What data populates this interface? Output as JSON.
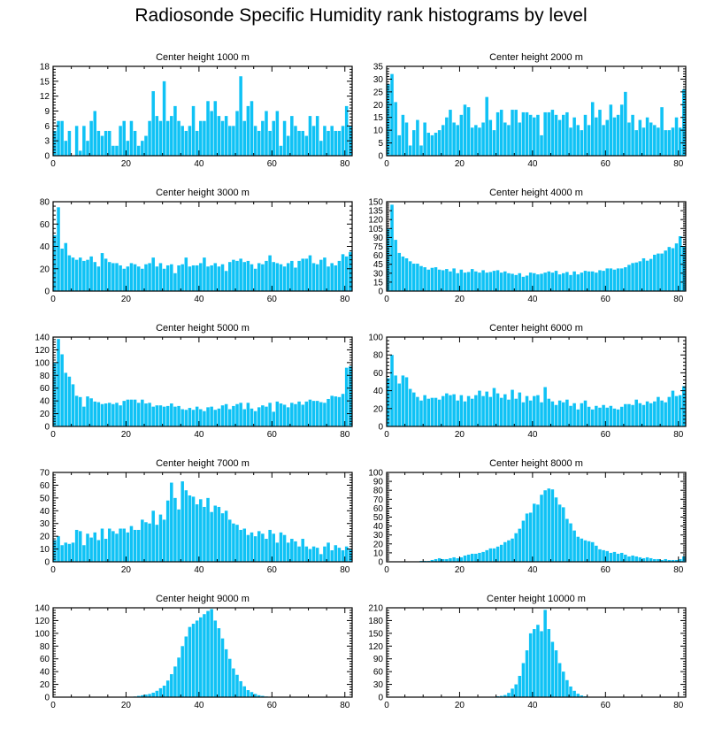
{
  "figure": {
    "title": "Radiosonde Specific Humidity rank histograms by level",
    "bar_color": "#0fc2f5",
    "axis_color": "#000000"
  },
  "chart_data": [
    {
      "type": "bar",
      "title": "Center height 1000 m",
      "xlim": [
        0,
        82
      ],
      "xticks": [
        0,
        20,
        40,
        60,
        80
      ],
      "ylim": [
        0,
        18
      ],
      "yticks": [
        0,
        3,
        6,
        9,
        12,
        15,
        18
      ],
      "values": [
        5,
        7,
        7,
        3,
        5,
        0,
        6,
        1,
        6,
        3,
        7,
        9,
        5,
        4,
        5,
        5,
        2,
        2,
        6,
        7,
        3,
        7,
        5,
        2,
        3,
        4,
        7,
        13,
        8,
        7,
        15,
        7,
        8,
        10,
        7,
        6,
        5,
        6,
        10,
        5,
        7,
        7,
        11,
        9,
        11,
        8,
        7,
        8,
        6,
        6,
        9,
        16,
        7,
        10,
        11,
        6,
        5,
        7,
        9,
        5,
        7,
        9,
        2,
        7,
        4,
        8,
        6,
        5,
        5,
        4,
        8,
        6,
        8,
        3,
        6,
        5,
        6,
        5,
        5,
        6,
        10,
        6
      ]
    },
    {
      "type": "bar",
      "title": "Center height 2000 m",
      "xlim": [
        0,
        82
      ],
      "xticks": [
        0,
        20,
        40,
        60,
        80
      ],
      "ylim": [
        0,
        35
      ],
      "yticks": [
        0,
        5,
        10,
        15,
        20,
        25,
        30,
        35
      ],
      "values": [
        28,
        32,
        21,
        8,
        16,
        13,
        4,
        10,
        14,
        4,
        13,
        9,
        8,
        9,
        10,
        12,
        15,
        18,
        13,
        12,
        16,
        20,
        19,
        11,
        12,
        11,
        13,
        23,
        14,
        10,
        17,
        18,
        13,
        12,
        18,
        18,
        13,
        17,
        17,
        16,
        15,
        16,
        8,
        17,
        17,
        18,
        16,
        14,
        16,
        17,
        11,
        15,
        12,
        10,
        16,
        12,
        21,
        15,
        18,
        12,
        14,
        20,
        15,
        16,
        20,
        25,
        13,
        16,
        10,
        14,
        11,
        15,
        13,
        12,
        11,
        19,
        10,
        10,
        11,
        15,
        11,
        26
      ]
    },
    {
      "type": "bar",
      "title": "Center height 3000 m",
      "xlim": [
        0,
        82
      ],
      "xticks": [
        0,
        20,
        40,
        60,
        80
      ],
      "ylim": [
        0,
        80
      ],
      "yticks": [
        0,
        20,
        40,
        60,
        80
      ],
      "values": [
        50,
        75,
        38,
        43,
        32,
        30,
        28,
        30,
        27,
        28,
        31,
        26,
        22,
        34,
        29,
        26,
        25,
        25,
        23,
        20,
        22,
        25,
        24,
        22,
        20,
        24,
        25,
        30,
        22,
        25,
        20,
        23,
        24,
        16,
        23,
        24,
        30,
        22,
        23,
        23,
        25,
        30,
        22,
        23,
        25,
        22,
        24,
        18,
        26,
        28,
        27,
        29,
        26,
        27,
        24,
        20,
        25,
        24,
        27,
        32,
        26,
        25,
        24,
        22,
        25,
        27,
        21,
        27,
        29,
        29,
        32,
        25,
        24,
        28,
        30,
        22,
        25,
        23,
        27,
        33,
        31,
        35
      ]
    },
    {
      "type": "bar",
      "title": "Center height 4000 m",
      "xlim": [
        0,
        82
      ],
      "xticks": [
        0,
        20,
        40,
        60,
        80
      ],
      "ylim": [
        0,
        150
      ],
      "yticks": [
        0,
        15,
        30,
        45,
        60,
        75,
        90,
        105,
        120,
        135,
        150
      ],
      "values": [
        105,
        145,
        86,
        64,
        58,
        55,
        50,
        46,
        46,
        42,
        40,
        36,
        39,
        40,
        36,
        35,
        37,
        33,
        38,
        30,
        36,
        31,
        32,
        37,
        33,
        31,
        35,
        31,
        32,
        34,
        35,
        31,
        33,
        30,
        29,
        27,
        30,
        24,
        26,
        31,
        30,
        28,
        29,
        31,
        33,
        31,
        34,
        28,
        30,
        32,
        27,
        33,
        28,
        31,
        34,
        33,
        33,
        31,
        35,
        34,
        38,
        38,
        36,
        38,
        38,
        40,
        44,
        47,
        48,
        50,
        55,
        51,
        54,
        61,
        63,
        63,
        68,
        74,
        72,
        80,
        92,
        75
      ]
    },
    {
      "type": "bar",
      "title": "Center height 5000 m",
      "xlim": [
        0,
        82
      ],
      "xticks": [
        0,
        20,
        40,
        60,
        80
      ],
      "ylim": [
        0,
        140
      ],
      "yticks": [
        0,
        20,
        40,
        60,
        80,
        100,
        120,
        140
      ],
      "values": [
        100,
        137,
        113,
        84,
        78,
        66,
        48,
        46,
        31,
        47,
        44,
        39,
        38,
        35,
        36,
        37,
        35,
        37,
        33,
        40,
        42,
        42,
        42,
        37,
        42,
        36,
        37,
        31,
        33,
        33,
        31,
        32,
        36,
        31,
        32,
        27,
        26,
        29,
        26,
        31,
        27,
        24,
        30,
        31,
        26,
        28,
        33,
        35,
        27,
        32,
        35,
        37,
        27,
        37,
        28,
        24,
        30,
        33,
        31,
        37,
        23,
        39,
        36,
        34,
        30,
        37,
        35,
        39,
        34,
        39,
        42,
        40,
        40,
        38,
        37,
        43,
        48,
        47,
        46,
        51,
        92,
        94
      ]
    },
    {
      "type": "bar",
      "title": "Center height 6000 m",
      "xlim": [
        0,
        82
      ],
      "xticks": [
        0,
        20,
        40,
        60,
        80
      ],
      "ylim": [
        0,
        100
      ],
      "yticks": [
        0,
        20,
        40,
        60,
        80,
        100
      ],
      "values": [
        54,
        80,
        57,
        48,
        57,
        55,
        42,
        38,
        33,
        29,
        35,
        31,
        32,
        32,
        30,
        34,
        37,
        35,
        36,
        29,
        35,
        28,
        34,
        31,
        35,
        40,
        34,
        39,
        33,
        43,
        37,
        32,
        36,
        30,
        41,
        31,
        38,
        27,
        34,
        29,
        34,
        35,
        27,
        44,
        31,
        28,
        24,
        29,
        27,
        30,
        23,
        26,
        19,
        26,
        29,
        22,
        19,
        23,
        21,
        24,
        21,
        23,
        20,
        19,
        22,
        25,
        25,
        24,
        30,
        26,
        24,
        28,
        26,
        28,
        33,
        29,
        27,
        33,
        40,
        34,
        35,
        45
      ]
    },
    {
      "type": "bar",
      "title": "Center height 7000 m",
      "xlim": [
        0,
        82
      ],
      "xticks": [
        0,
        20,
        40,
        60,
        80
      ],
      "ylim": [
        0,
        70
      ],
      "yticks": [
        0,
        10,
        20,
        30,
        40,
        50,
        60,
        70
      ],
      "values": [
        17,
        20,
        13,
        15,
        14,
        15,
        25,
        24,
        13,
        22,
        19,
        23,
        17,
        26,
        18,
        26,
        24,
        22,
        26,
        26,
        23,
        28,
        25,
        25,
        33,
        31,
        30,
        40,
        29,
        37,
        33,
        48,
        62,
        50,
        41,
        63,
        56,
        52,
        51,
        45,
        49,
        43,
        50,
        39,
        44,
        43,
        38,
        40,
        33,
        30,
        29,
        25,
        26,
        21,
        23,
        20,
        24,
        22,
        18,
        25,
        22,
        15,
        23,
        21,
        15,
        18,
        16,
        12,
        18,
        12,
        10,
        12,
        11,
        6,
        12,
        15,
        9,
        13,
        11,
        9,
        12,
        10
      ]
    },
    {
      "type": "bar",
      "title": "Center height 8000 m",
      "xlim": [
        0,
        82
      ],
      "xticks": [
        0,
        20,
        40,
        60,
        80
      ],
      "ylim": [
        0,
        100
      ],
      "yticks": [
        0,
        10,
        20,
        30,
        40,
        50,
        60,
        70,
        80,
        90,
        100
      ],
      "values": [
        0,
        0,
        0,
        0,
        0,
        0,
        0,
        0,
        0,
        1,
        1,
        1,
        2,
        3,
        4,
        3,
        3,
        4,
        5,
        4,
        5,
        7,
        8,
        9,
        9,
        10,
        11,
        13,
        15,
        15,
        17,
        19,
        22,
        24,
        26,
        32,
        37,
        46,
        54,
        55,
        65,
        64,
        75,
        80,
        82,
        81,
        72,
        64,
        61,
        48,
        43,
        35,
        28,
        26,
        24,
        23,
        22,
        18,
        14,
        13,
        12,
        10,
        11,
        9,
        10,
        8,
        6,
        7,
        6,
        5,
        4,
        5,
        4,
        3,
        3,
        2,
        3,
        2,
        2,
        2,
        3,
        6
      ]
    },
    {
      "type": "bar",
      "title": "Center height 9000 m",
      "xlim": [
        0,
        82
      ],
      "xticks": [
        0,
        20,
        40,
        60,
        80
      ],
      "ylim": [
        0,
        140
      ],
      "yticks": [
        0,
        20,
        40,
        60,
        80,
        100,
        120,
        140
      ],
      "values": [
        0,
        0,
        0,
        0,
        0,
        0,
        0,
        0,
        0,
        0,
        0,
        0,
        0,
        0,
        0,
        0,
        0,
        0,
        0,
        0,
        0,
        0,
        1,
        2,
        3,
        4,
        5,
        7,
        10,
        14,
        18,
        26,
        36,
        48,
        62,
        80,
        95,
        110,
        115,
        120,
        125,
        130,
        135,
        138,
        120,
        108,
        92,
        75,
        60,
        45,
        35,
        25,
        17,
        11,
        8,
        5,
        3,
        2,
        1,
        0,
        0,
        0,
        0,
        0,
        0,
        0,
        0,
        0,
        0,
        0,
        0,
        0,
        0,
        0,
        0,
        0,
        0,
        0,
        0,
        0,
        0,
        0
      ]
    },
    {
      "type": "bar",
      "title": "Center height 10000 m",
      "xlim": [
        0,
        82
      ],
      "xticks": [
        0,
        20,
        40,
        60,
        80
      ],
      "ylim": [
        0,
        210
      ],
      "yticks": [
        0,
        30,
        60,
        90,
        120,
        150,
        180,
        210
      ],
      "values": [
        0,
        0,
        0,
        0,
        0,
        0,
        0,
        0,
        0,
        0,
        0,
        0,
        0,
        0,
        0,
        0,
        0,
        0,
        0,
        0,
        0,
        0,
        0,
        0,
        0,
        0,
        0,
        0,
        0,
        1,
        2,
        3,
        5,
        10,
        20,
        30,
        50,
        80,
        110,
        150,
        160,
        170,
        155,
        205,
        160,
        130,
        110,
        80,
        60,
        40,
        25,
        15,
        8,
        4,
        2,
        1,
        0,
        0,
        0,
        0,
        0,
        0,
        0,
        0,
        0,
        0,
        0,
        0,
        0,
        0,
        0,
        0,
        0,
        0,
        0,
        0,
        0,
        0,
        0,
        0,
        0,
        0
      ]
    }
  ]
}
